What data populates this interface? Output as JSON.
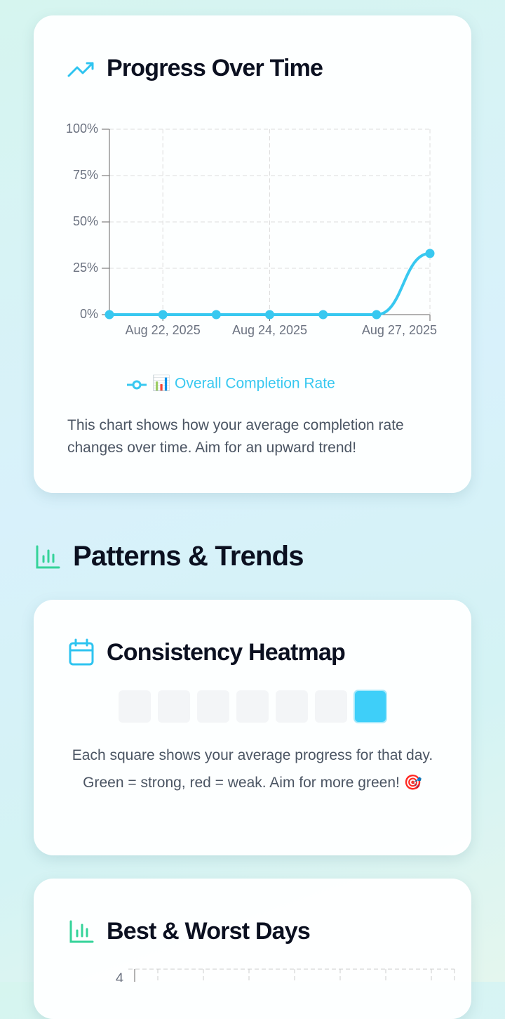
{
  "chart_data": {
    "type": "line",
    "title": "Progress Over Time",
    "x": [
      null,
      "Aug 22, 2025",
      null,
      "Aug 24, 2025",
      null,
      null,
      "Aug 27, 2025"
    ],
    "series": [
      {
        "name": "📊 Overall Completion Rate",
        "color": "#38c8f0",
        "values": [
          0,
          0,
          0,
          0,
          0,
          0,
          33
        ]
      }
    ],
    "ylim": [
      0,
      100
    ],
    "yticks": [
      {
        "value": 0,
        "label": "0%"
      },
      {
        "value": 25,
        "label": "25%"
      },
      {
        "value": 50,
        "label": "50%"
      },
      {
        "value": 75,
        "label": "75%"
      },
      {
        "value": 100,
        "label": "100%"
      }
    ],
    "grid": true,
    "description": "This chart shows how your average completion rate changes over time. Aim for an upward trend!"
  },
  "patterns": {
    "heading": "Patterns & Trends",
    "heatmap": {
      "title": "Consistency Heatmap",
      "values": [
        0,
        0,
        0,
        0,
        0,
        0,
        33
      ],
      "empty_color": "#f3f5f7",
      "color": "#3ecff9",
      "description": [
        "Each square shows your average progress for that day.",
        "Green = strong, red = weak. Aim for more green! 🎯"
      ]
    },
    "best_worst": {
      "title": "Best & Worst Days",
      "yticks": [
        4
      ]
    }
  }
}
